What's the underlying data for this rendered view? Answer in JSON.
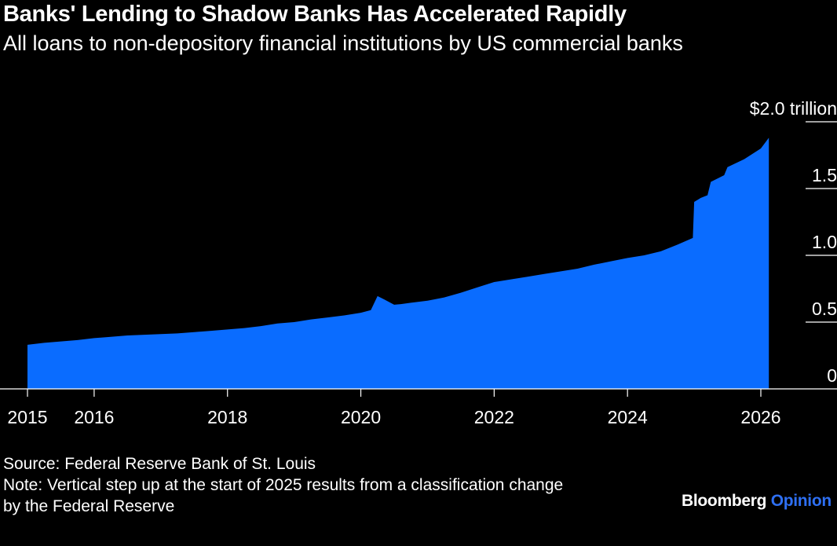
{
  "header": {
    "title": "Banks' Lending to Shadow Banks Has Accelerated Rapidly",
    "subtitle": "All loans to non-depository financial institutions by US commercial banks"
  },
  "chart_data": {
    "type": "area",
    "x_label": "",
    "y_label": "",
    "x_ticks": [
      "2015",
      "2016",
      "2018",
      "2020",
      "2022",
      "2024",
      "2026"
    ],
    "x_tick_values": [
      2015,
      2016,
      2018,
      2020,
      2022,
      2024,
      2026
    ],
    "y_ticks": [
      "$2.0 trillion",
      "1.5",
      "1.0",
      "0.5",
      "0"
    ],
    "y_tick_values": [
      2.0,
      1.5,
      1.0,
      0.5,
      0
    ],
    "x_range": [
      2015,
      2026.3
    ],
    "y_range": [
      0,
      2.0
    ],
    "grid": false,
    "fill_color": "#0a6cff",
    "series": [
      {
        "x": [
          2015.0,
          2015.25,
          2015.5,
          2015.75,
          2016.0,
          2016.25,
          2016.5,
          2016.75,
          2017.0,
          2017.25,
          2017.5,
          2017.75,
          2018.0,
          2018.25,
          2018.5,
          2018.75,
          2019.0,
          2019.25,
          2019.5,
          2019.75,
          2020.0,
          2020.15,
          2020.25,
          2020.35,
          2020.5,
          2020.6,
          2020.75,
          2021.0,
          2021.25,
          2021.5,
          2021.75,
          2022.0,
          2022.25,
          2022.5,
          2022.75,
          2023.0,
          2023.25,
          2023.5,
          2023.75,
          2024.0,
          2024.25,
          2024.5,
          2024.75,
          2024.98,
          2025.0,
          2025.1,
          2025.2,
          2025.25,
          2025.45,
          2025.5,
          2025.75,
          2026.0,
          2026.12
        ],
        "y": [
          0.33,
          0.345,
          0.355,
          0.365,
          0.38,
          0.39,
          0.4,
          0.405,
          0.41,
          0.415,
          0.425,
          0.435,
          0.445,
          0.455,
          0.47,
          0.49,
          0.5,
          0.52,
          0.535,
          0.55,
          0.57,
          0.59,
          0.695,
          0.67,
          0.63,
          0.635,
          0.645,
          0.66,
          0.685,
          0.72,
          0.76,
          0.8,
          0.82,
          0.84,
          0.86,
          0.88,
          0.9,
          0.93,
          0.955,
          0.98,
          1.0,
          1.03,
          1.08,
          1.13,
          1.4,
          1.43,
          1.45,
          1.55,
          1.6,
          1.66,
          1.72,
          1.8,
          1.88
        ]
      }
    ]
  },
  "footer": {
    "source": "Source: Federal Reserve Bank of St. Louis",
    "note_line1": "Note: Vertical step up at the start of 2025 results from a classification change",
    "note_line2": "by the Federal Reserve"
  },
  "brand": {
    "name": "Bloomberg",
    "product": "Opinion"
  }
}
